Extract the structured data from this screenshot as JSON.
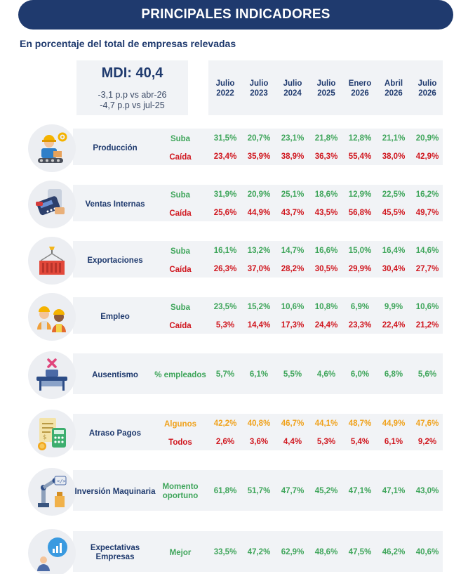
{
  "header": {
    "title": "PRINCIPALES INDICADORES",
    "subtitle": "En porcentaje del total de empresas relevadas"
  },
  "mdi": {
    "title": "MDI: 40,4",
    "line1": "-3,1 p.p vs abr-26",
    "line2": "-4,7 p.p vs jul-25"
  },
  "columns": [
    {
      "month": "Julio",
      "year": "2022"
    },
    {
      "month": "Julio",
      "year": "2023"
    },
    {
      "month": "Julio",
      "year": "2024"
    },
    {
      "month": "Julio",
      "year": "2025"
    },
    {
      "month": "Enero",
      "year": "2026"
    },
    {
      "month": "Abril",
      "year": "2026"
    },
    {
      "month": "Julio",
      "year": "2026"
    }
  ],
  "rows": [
    {
      "name": "Producción",
      "icon": "production-worker-icon",
      "sub": [
        {
          "label": "Suba",
          "color": "green",
          "values": [
            "31,5%",
            "20,7%",
            "23,1%",
            "21,8%",
            "12,8%",
            "21,1%",
            "20,9%"
          ]
        },
        {
          "label": "Caída",
          "color": "red",
          "values": [
            "23,4%",
            "35,9%",
            "38,9%",
            "36,3%",
            "55,4%",
            "38,0%",
            "42,9%"
          ]
        }
      ]
    },
    {
      "name": "Ventas Internas",
      "icon": "card-terminal-icon",
      "sub": [
        {
          "label": "Suba",
          "color": "green",
          "values": [
            "31,9%",
            "20,9%",
            "25,1%",
            "18,6%",
            "12,9%",
            "22,5%",
            "16,2%"
          ]
        },
        {
          "label": "Caída",
          "color": "red",
          "values": [
            "25,6%",
            "44,9%",
            "43,7%",
            "43,5%",
            "56,8%",
            "45,5%",
            "49,7%"
          ]
        }
      ]
    },
    {
      "name": "Exportaciones",
      "icon": "container-crane-icon",
      "sub": [
        {
          "label": "Suba",
          "color": "green",
          "values": [
            "16,1%",
            "13,2%",
            "14,7%",
            "16,6%",
            "15,0%",
            "16,4%",
            "14,6%"
          ]
        },
        {
          "label": "Caída",
          "color": "red",
          "values": [
            "26,3%",
            "37,0%",
            "28,2%",
            "30,5%",
            "29,9%",
            "30,4%",
            "27,7%"
          ]
        }
      ]
    },
    {
      "name": "Empleo",
      "icon": "workers-icon",
      "sub": [
        {
          "label": "Suba",
          "color": "green",
          "values": [
            "23,5%",
            "15,2%",
            "10,6%",
            "10,8%",
            "6,9%",
            "9,9%",
            "10,6%"
          ]
        },
        {
          "label": "Caída",
          "color": "red",
          "values": [
            "5,3%",
            "14,4%",
            "17,3%",
            "24,4%",
            "23,3%",
            "22,4%",
            "21,2%"
          ]
        }
      ]
    },
    {
      "name": "Ausentismo",
      "icon": "empty-desk-icon",
      "sub": [
        {
          "label": "% empleados",
          "color": "green",
          "values": [
            "5,7%",
            "6,1%",
            "5,5%",
            "4,6%",
            "6,0%",
            "6,8%",
            "5,6%"
          ]
        }
      ]
    },
    {
      "name": "Atraso Pagos",
      "icon": "invoice-calculator-icon",
      "sub": [
        {
          "label": "Algunos",
          "color": "orange",
          "values": [
            "42,2%",
            "40,8%",
            "46,7%",
            "44,1%",
            "48,7%",
            "44,9%",
            "47,6%"
          ]
        },
        {
          "label": "Todos",
          "color": "red",
          "values": [
            "2,6%",
            "3,6%",
            "4,4%",
            "5,3%",
            "5,4%",
            "6,1%",
            "9,2%"
          ]
        }
      ]
    },
    {
      "name": "Inversión Maquinaria",
      "icon": "robot-arm-icon",
      "sub": [
        {
          "label": "Momento oportuno",
          "color": "green",
          "values": [
            "61,8%",
            "51,7%",
            "47,7%",
            "45,2%",
            "47,1%",
            "47,1%",
            "43,0%"
          ]
        }
      ]
    },
    {
      "name": "Expectativas Empresas",
      "icon": "growth-chart-icon",
      "sub": [
        {
          "label": "Mejor",
          "color": "green",
          "values": [
            "33,5%",
            "47,2%",
            "62,9%",
            "48,6%",
            "47,5%",
            "46,2%",
            "40,6%"
          ]
        }
      ]
    }
  ]
}
